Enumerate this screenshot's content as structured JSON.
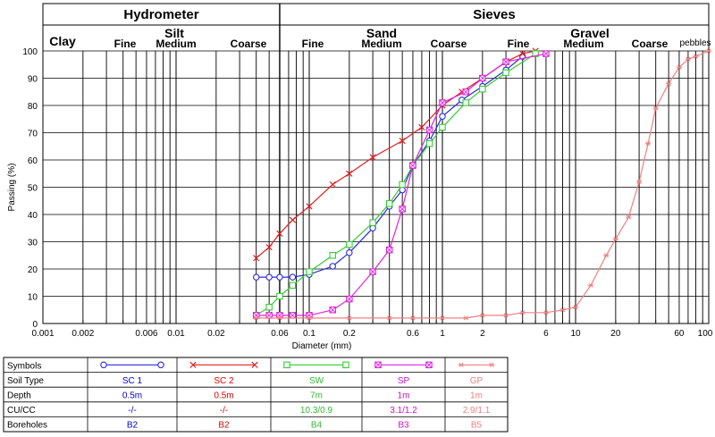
{
  "chart_data": {
    "type": "line",
    "xscale": "log",
    "xlim": [
      0.001,
      100
    ],
    "ylim": [
      0,
      100
    ],
    "xlabel": "Diameter (mm)",
    "ylabel": "Passing (%)",
    "header_top": [
      "Hydrometer",
      "Sieves"
    ],
    "header_mid": [
      "Clay",
      "Silt",
      "Sand",
      "Gravel"
    ],
    "header_sub": [
      "Fine",
      "Medium",
      "Coarse",
      "Fine",
      "Medium",
      "Coarse",
      "Fine",
      "Medium",
      "Coarse",
      "pebbles"
    ],
    "xticks": [
      {
        "v": 0.001,
        "label": "0.001"
      },
      {
        "v": 0.002,
        "label": "0.002"
      },
      {
        "v": 0.006,
        "label": "0.006"
      },
      {
        "v": 0.01,
        "label": "0.01"
      },
      {
        "v": 0.02,
        "label": "0.02"
      },
      {
        "v": 0.06,
        "label": "0.06"
      },
      {
        "v": 0.1,
        "label": "0.1"
      },
      {
        "v": 0.2,
        "label": "0.2"
      },
      {
        "v": 0.6,
        "label": "0.6"
      },
      {
        "v": 1,
        "label": "1"
      },
      {
        "v": 2,
        "label": "2"
      },
      {
        "v": 6,
        "label": "6"
      },
      {
        "v": 10,
        "label": "10"
      },
      {
        "v": 20,
        "label": "20"
      },
      {
        "v": 60,
        "label": "60"
      },
      {
        "v": 100,
        "label": "100"
      }
    ],
    "yticks": [
      0,
      10,
      20,
      30,
      40,
      50,
      60,
      70,
      80,
      90,
      100
    ],
    "series": [
      {
        "name": "SC 1",
        "color": "#2b2bdc",
        "marker": "circle",
        "points": [
          [
            0.04,
            17
          ],
          [
            0.05,
            17
          ],
          [
            0.06,
            17
          ],
          [
            0.075,
            17
          ],
          [
            0.1,
            18
          ],
          [
            0.15,
            21
          ],
          [
            0.2,
            26
          ],
          [
            0.3,
            35
          ],
          [
            0.4,
            43
          ],
          [
            0.5,
            49
          ],
          [
            0.6,
            58
          ],
          [
            0.8,
            67
          ],
          [
            1,
            76
          ],
          [
            1.4,
            82
          ],
          [
            2,
            87
          ],
          [
            3,
            93
          ],
          [
            4,
            98
          ]
        ]
      },
      {
        "name": "SC 2",
        "color": "#e02020",
        "marker": "x",
        "points": [
          [
            0.04,
            24
          ],
          [
            0.05,
            28
          ],
          [
            0.06,
            33
          ],
          [
            0.075,
            38
          ],
          [
            0.1,
            43
          ],
          [
            0.15,
            51
          ],
          [
            0.2,
            55
          ],
          [
            0.3,
            61
          ],
          [
            0.5,
            67
          ],
          [
            0.7,
            72
          ],
          [
            1,
            80
          ],
          [
            1.4,
            85
          ],
          [
            2,
            90
          ],
          [
            3,
            96
          ],
          [
            4,
            99
          ],
          [
            5,
            100
          ]
        ]
      },
      {
        "name": "SW",
        "color": "#33cc33",
        "marker": "square",
        "points": [
          [
            0.04,
            3
          ],
          [
            0.05,
            6
          ],
          [
            0.06,
            10
          ],
          [
            0.075,
            14
          ],
          [
            0.1,
            19
          ],
          [
            0.15,
            25
          ],
          [
            0.2,
            29
          ],
          [
            0.3,
            37
          ],
          [
            0.4,
            44
          ],
          [
            0.5,
            51
          ],
          [
            0.6,
            58
          ],
          [
            0.8,
            66
          ],
          [
            1,
            72
          ],
          [
            1.5,
            81
          ],
          [
            2,
            86
          ],
          [
            3,
            92
          ],
          [
            5,
            99
          ]
        ]
      },
      {
        "name": "SP",
        "color": "#dd22dd",
        "marker": "squarex",
        "points": [
          [
            0.04,
            3
          ],
          [
            0.05,
            3
          ],
          [
            0.06,
            3
          ],
          [
            0.075,
            3
          ],
          [
            0.1,
            3
          ],
          [
            0.15,
            5
          ],
          [
            0.2,
            9
          ],
          [
            0.3,
            19
          ],
          [
            0.4,
            27
          ],
          [
            0.5,
            42
          ],
          [
            0.6,
            58
          ],
          [
            0.8,
            71
          ],
          [
            1,
            81
          ],
          [
            1.5,
            85
          ],
          [
            2,
            90
          ],
          [
            3,
            96
          ],
          [
            6,
            99
          ]
        ]
      },
      {
        "name": "GP",
        "color": "#f08080",
        "marker": "star",
        "points": [
          [
            0.04,
            2
          ],
          [
            0.06,
            2
          ],
          [
            0.1,
            2
          ],
          [
            0.2,
            2
          ],
          [
            0.4,
            2
          ],
          [
            0.6,
            2
          ],
          [
            1,
            2
          ],
          [
            1.5,
            2
          ],
          [
            2,
            3
          ],
          [
            3,
            3
          ],
          [
            4,
            4
          ],
          [
            6,
            4
          ],
          [
            8,
            5
          ],
          [
            10,
            6
          ],
          [
            13,
            14
          ],
          [
            17,
            25
          ],
          [
            20,
            31
          ],
          [
            25,
            39
          ],
          [
            30,
            52
          ],
          [
            35,
            66
          ],
          [
            40,
            79
          ],
          [
            50,
            88
          ],
          [
            60,
            94
          ],
          [
            70,
            97
          ],
          [
            80,
            98
          ],
          [
            100,
            100
          ]
        ]
      }
    ]
  },
  "legend": {
    "headers": [
      "Symbols",
      "Soil Type",
      "Depth",
      "CU/CC",
      "Boreholes"
    ],
    "rows": [
      {
        "soil_type": "SC 1",
        "depth": "0.5m",
        "cucc": "-/-",
        "borehole": "B2",
        "color": "#0000cc"
      },
      {
        "soil_type": "SC 2",
        "depth": "0.5m",
        "cucc": "-/-",
        "borehole": "B2",
        "color": "#dd0000"
      },
      {
        "soil_type": "SW",
        "depth": "7m",
        "cucc": "10.3/0.9",
        "borehole": "B4",
        "color": "#33bb33"
      },
      {
        "soil_type": "SP",
        "depth": "1m",
        "cucc": "3.1/1.2",
        "borehole": "B3",
        "color": "#cc11cc"
      },
      {
        "soil_type": "GP",
        "depth": "1m",
        "cucc": "2.9/1.1",
        "borehole": "B5",
        "color": "#ee8080"
      }
    ]
  }
}
